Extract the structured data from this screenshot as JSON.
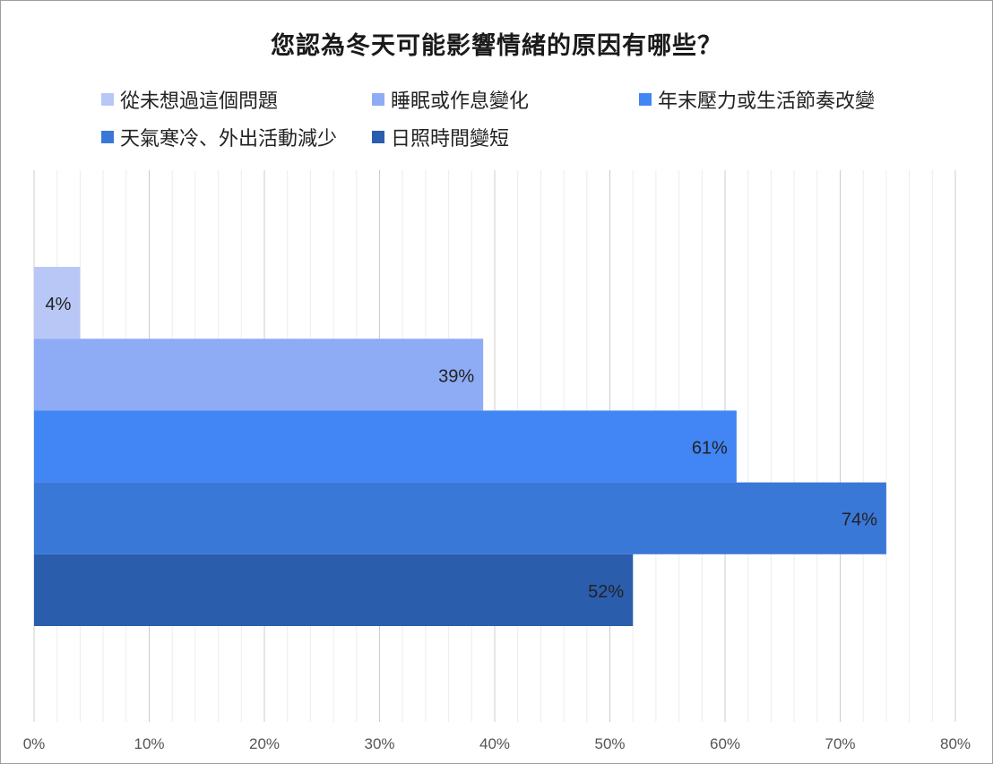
{
  "chart_data": {
    "type": "bar",
    "orientation": "horizontal",
    "title": "您認為冬天可能影響情緒的原因有哪些？",
    "series": [
      {
        "name": "從未想過這個問題",
        "value": 4,
        "label": "4%",
        "color": "#b8c7f6"
      },
      {
        "name": "睡眠或作息變化",
        "value": 39,
        "label": "39%",
        "color": "#8eacf5"
      },
      {
        "name": "年末壓力或生活節奏改變",
        "value": 61,
        "label": "61%",
        "color": "#4285f4"
      },
      {
        "name": "天氣寒冷、外出活動減少",
        "value": 74,
        "label": "74%",
        "color": "#3a78d8"
      },
      {
        "name": "日照時間變短",
        "value": 52,
        "label": "52%",
        "color": "#2b5dad"
      }
    ],
    "xlim": [
      0,
      80
    ],
    "x_ticks": [
      "0%",
      "10%",
      "20%",
      "30%",
      "40%",
      "50%",
      "60%",
      "70%",
      "80%"
    ],
    "grid": true,
    "legend_position": "top"
  }
}
